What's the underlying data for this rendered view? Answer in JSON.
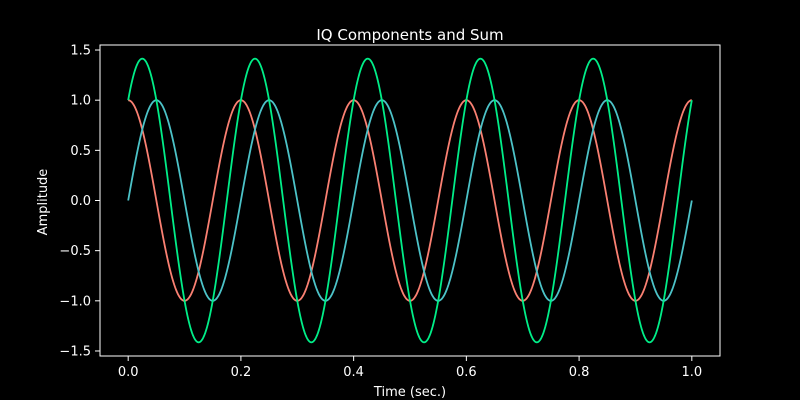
{
  "chart_data": {
    "type": "line",
    "title": "IQ Components and Sum",
    "xlabel": "Time (sec.)",
    "ylabel": "Amplitude",
    "xlim": [
      -0.05,
      1.05
    ],
    "ylim": [
      -1.55,
      1.55
    ],
    "xticks": [
      0.0,
      0.2,
      0.4,
      0.6,
      0.8,
      1.0
    ],
    "xtick_labels": [
      "0.0",
      "0.2",
      "0.4",
      "0.6",
      "0.8",
      "1.0"
    ],
    "yticks": [
      -1.5,
      -1.0,
      -0.5,
      0.0,
      0.5,
      1.0,
      1.5
    ],
    "ytick_labels": [
      "−1.5",
      "−1.0",
      "−0.5",
      "0.0",
      "0.5",
      "1.0",
      "1.5"
    ],
    "grid": false,
    "background": "#000000",
    "series": [
      {
        "color": "#fa8072",
        "formula": "cos(2*pi*5*t)",
        "frequency_hz": 5,
        "amplitude": 1.0,
        "phase_deg": 0,
        "t_range": [
          0.0,
          1.0
        ]
      },
      {
        "color": "#4cc3c8",
        "formula": "sin(2*pi*5*t)",
        "frequency_hz": 5,
        "amplitude": 1.0,
        "phase_deg": -90,
        "t_range": [
          0.0,
          1.0
        ]
      },
      {
        "color": "#00ee88",
        "formula": "cos(2*pi*5*t) + sin(2*pi*5*t)",
        "frequency_hz": 5,
        "amplitude": 1.414,
        "phase_deg": -45,
        "t_range": [
          0.0,
          1.0
        ]
      }
    ]
  }
}
